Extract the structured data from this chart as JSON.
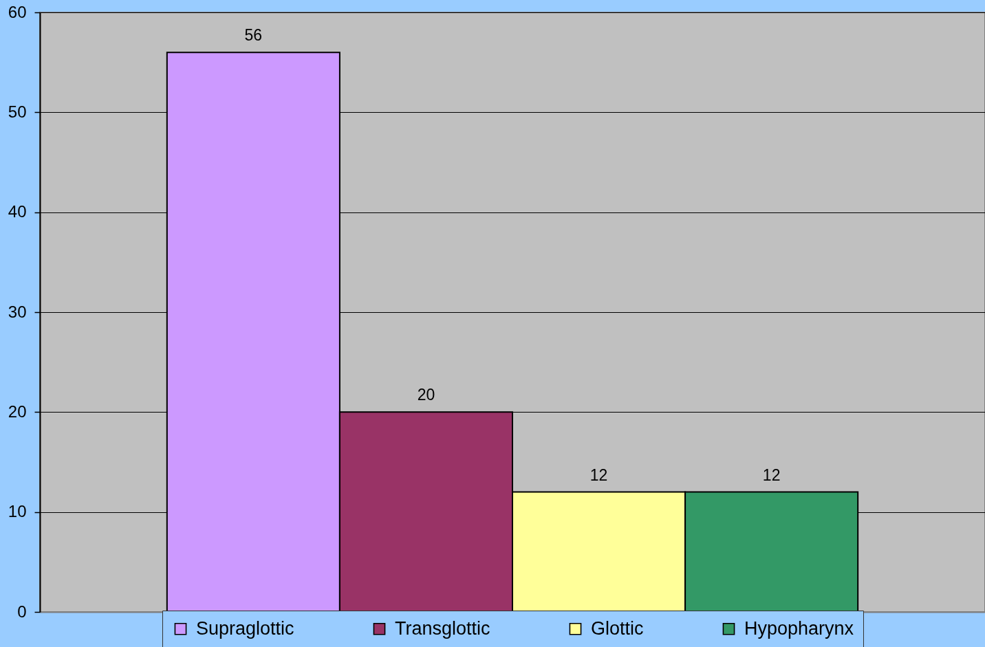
{
  "chart_data": {
    "type": "bar",
    "categories": [
      null
    ],
    "series": [
      {
        "name": "Supraglottic",
        "color": "#cc99ff",
        "values": [
          56
        ]
      },
      {
        "name": "Transglottic",
        "color": "#993366",
        "values": [
          20
        ]
      },
      {
        "name": "Glottic",
        "color": "#ffff99",
        "values": [
          12
        ]
      },
      {
        "name": "Hypopharynx",
        "color": "#339966",
        "values": [
          12
        ]
      }
    ],
    "ylim": [
      0,
      60
    ],
    "yticks": [
      0,
      10,
      20,
      30,
      40,
      50,
      60
    ],
    "grid": "y",
    "legend": "bottom",
    "data_labels": true,
    "tick_labels": "y"
  }
}
